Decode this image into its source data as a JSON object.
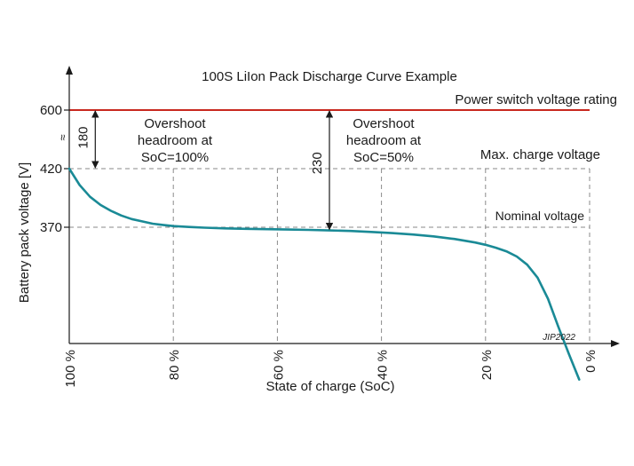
{
  "chart_data": {
    "type": "line",
    "title": "100S LiIon Pack Discharge Curve Example",
    "xlabel": "State of charge (SoC)",
    "ylabel": "Battery pack voltage [V]",
    "x_ticks": [
      "100 %",
      "80 %",
      "60 %",
      "40 %",
      "20 %",
      "0 %"
    ],
    "x_tick_values": [
      100,
      80,
      60,
      40,
      20,
      0
    ],
    "y_ticks": [
      "370",
      "420",
      "600"
    ],
    "y_tick_values": [
      370,
      420,
      600
    ],
    "xlim": [
      100,
      0
    ],
    "grid": "dashed",
    "series": [
      {
        "color": "#1a8a96",
        "x": [
          100,
          98,
          96,
          94,
          92,
          90,
          88,
          86,
          84,
          82,
          80,
          77,
          74,
          70,
          66,
          62,
          58,
          54,
          50,
          46,
          42,
          38,
          34,
          30,
          26,
          22,
          20,
          18,
          16,
          14,
          12,
          10,
          8,
          6,
          4,
          2
        ],
        "y": [
          420,
          406,
          396,
          389,
          384,
          380,
          377,
          375,
          373,
          372,
          371,
          370.2,
          369.6,
          369,
          368.6,
          368.3,
          368,
          367.7,
          367.3,
          366.8,
          366,
          365,
          363.8,
          362.2,
          360,
          357,
          355,
          352.5,
          349.5,
          345,
          338,
          327,
          309,
          285,
          262,
          240
        ]
      }
    ],
    "reference_lines": [
      {
        "label": "Power switch voltage rating",
        "y": 600,
        "color": "#c8281e",
        "style": "solid"
      },
      {
        "label": "Max. charge voltage",
        "y": 420,
        "color": "#888888",
        "style": "dashed"
      },
      {
        "label": "Nominal voltage",
        "y": 370,
        "color": "#888888",
        "style": "dashed"
      }
    ],
    "annotations": [
      {
        "value": "180",
        "x": 95,
        "from": 420,
        "to": 600,
        "text_lines": [
          "Overshoot",
          "headroom at",
          "SoC=100%"
        ]
      },
      {
        "value": "230",
        "x": 50,
        "from": 367.3,
        "to": 600,
        "text_lines": [
          "Overshoot",
          "headroom at",
          "SoC=50%"
        ]
      }
    ],
    "axis_break_symbol": "≈",
    "credit": "JIP2022"
  }
}
